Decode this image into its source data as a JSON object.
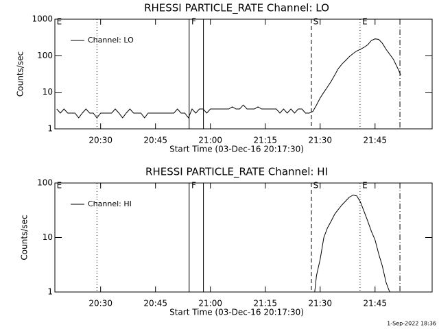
{
  "chart_data": [
    {
      "type": "line",
      "title": "RHESSI PARTICLE_RATE Channel: LO",
      "xlabel": "Start Time (03-Dec-16 20:17:30)",
      "ylabel": "Counts/sec",
      "log_y": true,
      "legend": "upper left",
      "xlim": [
        1217.5,
        1320.6
      ],
      "ylim": [
        1,
        1000
      ],
      "xticks": [
        {
          "value": 1230,
          "label": "20:30"
        },
        {
          "value": 1245,
          "label": "20:45"
        },
        {
          "value": 1260,
          "label": "21:00"
        },
        {
          "value": 1275,
          "label": "21:15"
        },
        {
          "value": 1290,
          "label": "21:30"
        },
        {
          "value": 1305,
          "label": "21:45"
        }
      ],
      "yticks": [
        1,
        10,
        100,
        1000
      ],
      "x": [
        1218,
        1219,
        1220,
        1221,
        1222,
        1223,
        1224,
        1225,
        1226,
        1227,
        1228,
        1229,
        1230,
        1231,
        1232,
        1233,
        1234,
        1235,
        1236,
        1237,
        1238,
        1239,
        1240,
        1241,
        1242,
        1243,
        1244,
        1245,
        1246,
        1247,
        1248,
        1249,
        1250,
        1251,
        1252,
        1253,
        1254,
        1255,
        1256,
        1257,
        1258,
        1259,
        1260,
        1261,
        1262,
        1263,
        1264,
        1265,
        1266,
        1267,
        1268,
        1269,
        1270,
        1271,
        1272,
        1273,
        1274,
        1275,
        1276,
        1277,
        1278,
        1279,
        1280,
        1281,
        1282,
        1283,
        1284,
        1285,
        1286,
        1287,
        1288,
        1289,
        1290,
        1291,
        1292,
        1293,
        1294,
        1295,
        1296,
        1297,
        1298,
        1299,
        1300,
        1301,
        1302,
        1303,
        1304,
        1305,
        1306,
        1307,
        1308,
        1309,
        1310,
        1311,
        1312
      ],
      "series": [
        {
          "name": "Channel: LO",
          "color": "#000000",
          "values": [
            3.5,
            2.7,
            3.5,
            2.7,
            2.7,
            2.7,
            2.0,
            2.7,
            3.5,
            2.7,
            2.7,
            2.0,
            2.7,
            2.7,
            2.7,
            2.7,
            3.5,
            2.7,
            2.0,
            2.7,
            3.5,
            2.7,
            2.7,
            2.7,
            2.0,
            2.7,
            2.7,
            2.7,
            2.7,
            2.7,
            2.7,
            2.7,
            2.7,
            3.5,
            2.7,
            2.7,
            2.0,
            3.5,
            2.7,
            3.5,
            3.5,
            2.7,
            3.5,
            3.5,
            3.5,
            3.5,
            3.5,
            3.5,
            4.0,
            3.5,
            3.5,
            4.5,
            3.5,
            3.5,
            3.5,
            4.0,
            3.5,
            3.5,
            3.5,
            3.5,
            3.5,
            2.7,
            3.5,
            2.7,
            3.5,
            2.7,
            3.5,
            3.5,
            2.7,
            2.7,
            3.0,
            4.5,
            7,
            10,
            14,
            20,
            30,
            45,
            60,
            75,
            95,
            115,
            135,
            150,
            170,
            200,
            260,
            290,
            280,
            220,
            150,
            110,
            80,
            50,
            30
          ]
        }
      ],
      "vlines": [
        {
          "x": 1229,
          "style": "dotted"
        },
        {
          "x": 1254.2,
          "style": "solid"
        },
        {
          "x": 1258.1,
          "style": "solid"
        },
        {
          "x": 1287.6,
          "style": "dashed"
        },
        {
          "x": 1300.9,
          "style": "dotted"
        },
        {
          "x": 1311.8,
          "style": "dashdot"
        }
      ],
      "annotations": [
        {
          "text": "E",
          "x": 1218
        },
        {
          "text": "F",
          "x": 1254.8
        },
        {
          "text": "S",
          "x": 1288.1
        },
        {
          "text": "E",
          "x": 1301.5
        }
      ]
    },
    {
      "type": "line",
      "title": "RHESSI PARTICLE_RATE Channel: HI",
      "xlabel": "Start Time (03-Dec-16 20:17:30)",
      "ylabel": "Counts/sec",
      "log_y": true,
      "legend": "upper left",
      "xlim": [
        1217.5,
        1320.6
      ],
      "ylim": [
        1,
        100
      ],
      "xticks": [
        {
          "value": 1230,
          "label": "20:30"
        },
        {
          "value": 1245,
          "label": "20:45"
        },
        {
          "value": 1260,
          "label": "21:00"
        },
        {
          "value": 1275,
          "label": "21:15"
        },
        {
          "value": 1290,
          "label": "21:30"
        },
        {
          "value": 1305,
          "label": "21:45"
        }
      ],
      "yticks": [
        1,
        10,
        100
      ],
      "x": [
        1288.5,
        1289,
        1290,
        1291,
        1292,
        1293,
        1294,
        1295,
        1296,
        1297,
        1298,
        1299,
        1300,
        1301,
        1302,
        1303,
        1304,
        1305,
        1306,
        1307,
        1308,
        1309
      ],
      "series": [
        {
          "name": "Channel: HI",
          "color": "#000000",
          "values": [
            1,
            2,
            4,
            10,
            15,
            20,
            27,
            33,
            40,
            47,
            55,
            60,
            58,
            45,
            30,
            20,
            13,
            9,
            5,
            3,
            1.5,
            1
          ]
        }
      ],
      "vlines": [
        {
          "x": 1229,
          "style": "dotted"
        },
        {
          "x": 1254.2,
          "style": "solid"
        },
        {
          "x": 1258.1,
          "style": "solid"
        },
        {
          "x": 1287.6,
          "style": "dashed"
        },
        {
          "x": 1300.9,
          "style": "dotted"
        },
        {
          "x": 1311.8,
          "style": "dashdot"
        }
      ],
      "annotations": [
        {
          "text": "E",
          "x": 1218
        },
        {
          "text": "F",
          "x": 1254.8
        },
        {
          "text": "S",
          "x": 1288.1
        },
        {
          "text": "E",
          "x": 1301.5
        }
      ]
    }
  ],
  "footer": "1-Sep-2022 18:36"
}
